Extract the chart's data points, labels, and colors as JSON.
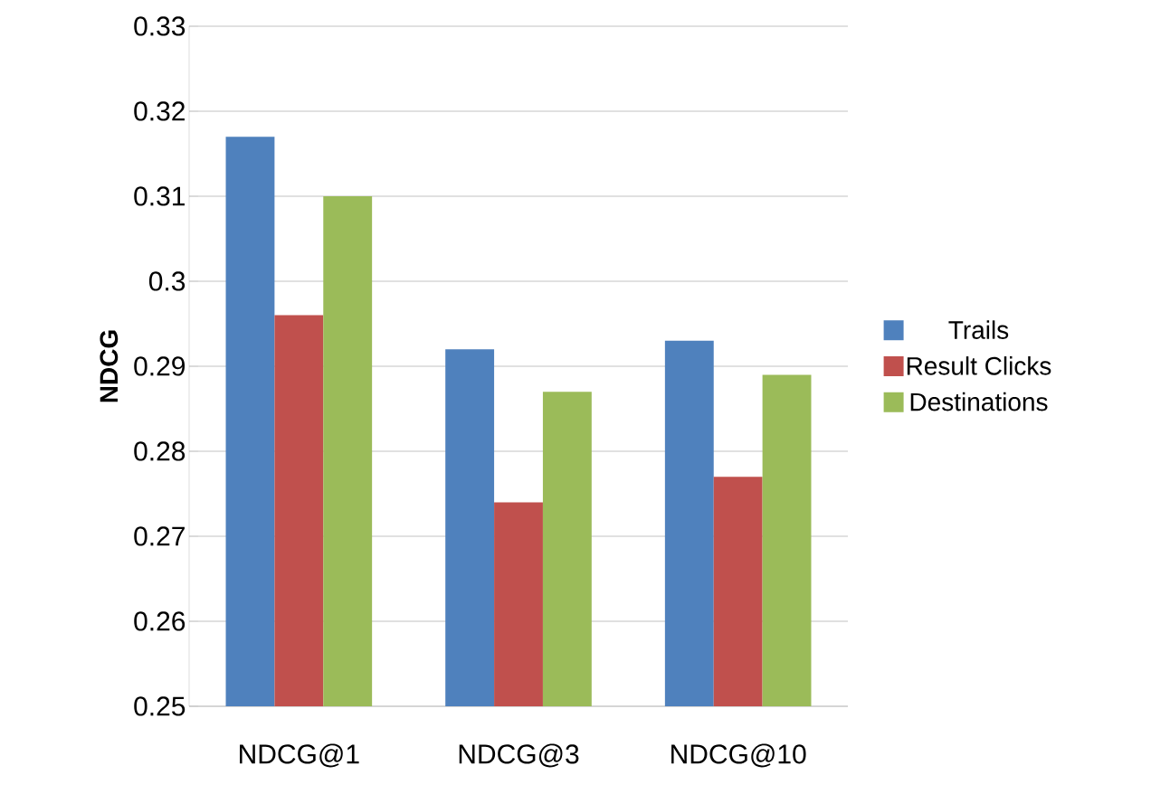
{
  "chart_data": {
    "type": "bar",
    "ylabel": "NDCG",
    "categories": [
      "NDCG@1",
      "NDCG@3",
      "NDCG@10"
    ],
    "series": [
      {
        "name": "Trails",
        "color": "#4f81bd",
        "values": [
          0.317,
          0.292,
          0.293
        ]
      },
      {
        "name": "Result Clicks",
        "color": "#c0504d",
        "values": [
          0.296,
          0.274,
          0.277
        ]
      },
      {
        "name": "Destinations",
        "color": "#9bbb59",
        "values": [
          0.31,
          0.287,
          0.289
        ]
      }
    ],
    "ylim": [
      0.25,
      0.33
    ],
    "yticks": [
      0.25,
      0.26,
      0.27,
      0.28,
      0.29,
      0.3,
      0.31,
      0.32,
      0.33
    ],
    "grid": "y",
    "legend": "right"
  }
}
